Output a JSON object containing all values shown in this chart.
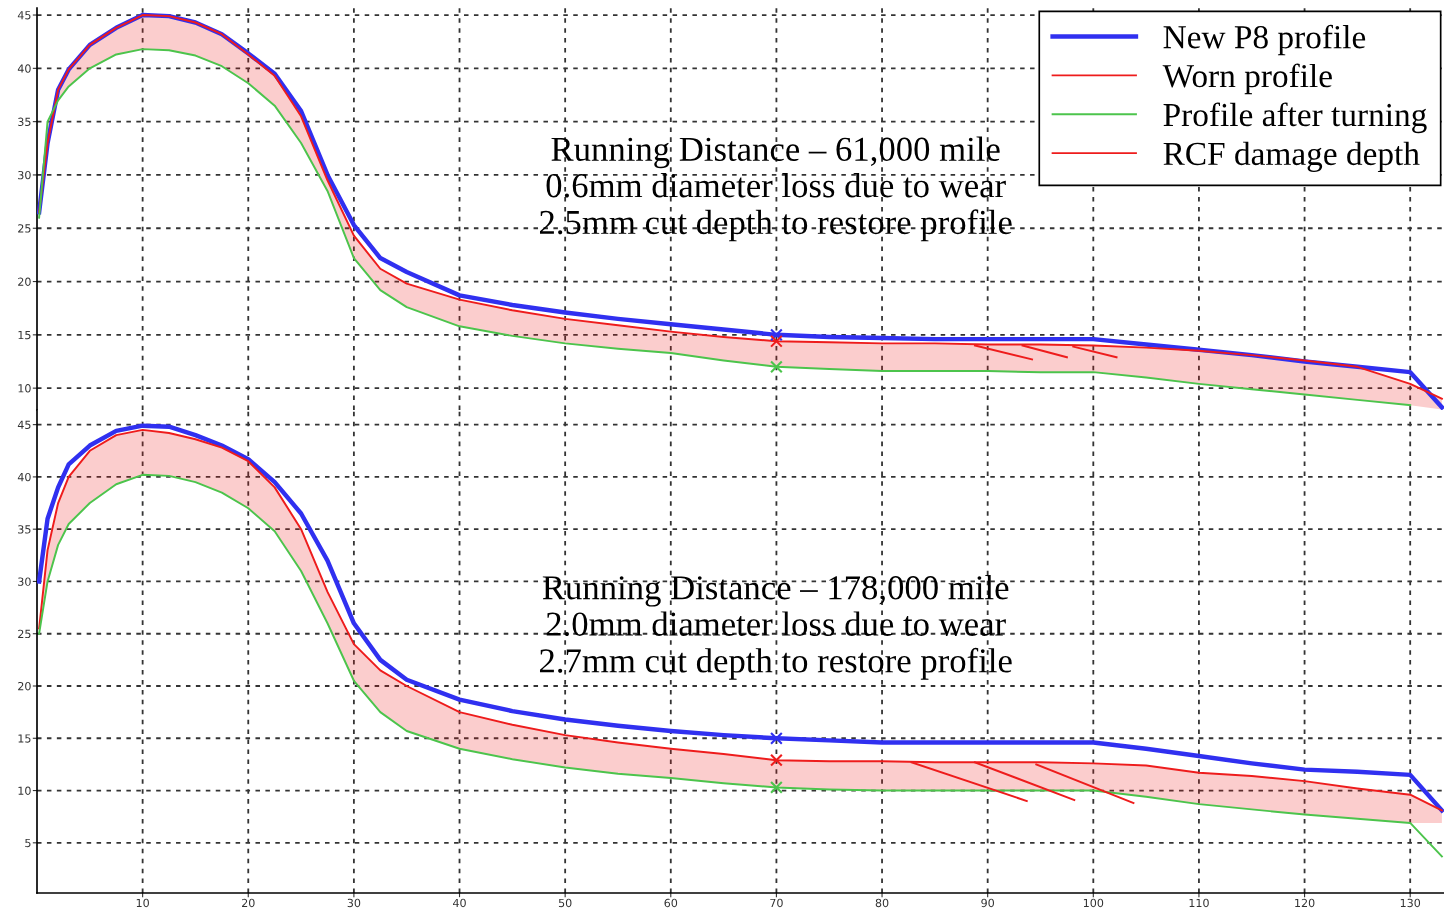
{
  "chart_data": [
    {
      "type": "line",
      "x": [
        0.2,
        1,
        2,
        3,
        5,
        7.5,
        10,
        12.5,
        15,
        17.5,
        20,
        22.5,
        25,
        27.5,
        30,
        32.5,
        35,
        40,
        45,
        50,
        55,
        60,
        65,
        70,
        75,
        80,
        85,
        90,
        95,
        100,
        105,
        110,
        115,
        120,
        125,
        130,
        133
      ],
      "series": [
        {
          "name": "New P8 profile",
          "color": "#3030f0",
          "values": [
            26.5,
            33,
            38,
            39.9,
            42.2,
            43.8,
            45.0,
            44.9,
            44.3,
            43.2,
            41.4,
            39.5,
            36,
            30,
            25.3,
            22.2,
            20.9,
            18.7,
            17.8,
            17.1,
            16.5,
            16.0,
            15.5,
            15.0,
            14.8,
            14.7,
            14.6,
            14.6,
            14.6,
            14.6,
            14.1,
            13.6,
            13.1,
            12.5,
            12.0,
            11.5,
            8.2
          ]
        },
        {
          "name": "Worn profile",
          "color": "#ee1c1c",
          "values": [
            26.5,
            33,
            38,
            39.9,
            42.2,
            43.8,
            45.0,
            44.9,
            44.3,
            43.2,
            41.3,
            39.3,
            35.5,
            29.5,
            24.3,
            21.2,
            19.8,
            18.3,
            17.3,
            16.5,
            15.9,
            15.3,
            14.8,
            14.4,
            14.3,
            14.2,
            14.2,
            14.1,
            14.1,
            14.0,
            13.8,
            13.5,
            13.1,
            12.6,
            12.0,
            10.4,
            9.0
          ],
          "lower": [
            26,
            35,
            37,
            38.3,
            40,
            41.3,
            41.8,
            41.7,
            41.2,
            40.2,
            38.6,
            36.5,
            33,
            28.5,
            22.2,
            19.2,
            17.6,
            15.8,
            14.9,
            14.2,
            13.7,
            13.3,
            12.6,
            12.0,
            11.8,
            11.6,
            11.6,
            11.6,
            11.5,
            11.5,
            11.0,
            10.4,
            9.9,
            9.4,
            8.9,
            8.4,
            8.0
          ],
          "upper": [
            26.5,
            33,
            38,
            39.9,
            42.2,
            43.8,
            45.0,
            44.9,
            44.3,
            43.2,
            41.3,
            39.3,
            35.5,
            29.5,
            24.3,
            21.2,
            19.8,
            18.3,
            17.3,
            16.5,
            15.9,
            15.3,
            14.8,
            14.4,
            14.3,
            14.2,
            14.2,
            14.1,
            14.1,
            14.0,
            13.8,
            13.5,
            13.1,
            12.6,
            12.0,
            10.4,
            9.0
          ]
        },
        {
          "name": "Profile after turning",
          "color": "#4cc44c",
          "values": [
            26,
            35,
            37,
            38.3,
            40,
            41.3,
            41.8,
            41.7,
            41.2,
            40.2,
            38.6,
            36.5,
            33,
            28.5,
            22.2,
            19.2,
            17.6,
            15.8,
            14.9,
            14.2,
            13.7,
            13.3,
            12.6,
            12.0,
            11.8,
            11.6,
            11.6,
            11.6,
            11.5,
            11.5,
            11.0,
            10.4,
            9.9,
            9.4,
            8.9,
            8.4,
            null
          ]
        },
        {
          "name": "RCF damage depth",
          "color": "#ee1c1c",
          "x": [
            88.8,
            94.2
          ],
          "values": [
            14.0,
            12.7
          ]
        },
        {
          "color": "#ee1c1c",
          "x": [
            93.3,
            97.5
          ],
          "values": [
            14.0,
            12.9
          ]
        },
        {
          "color": "#ee1c1c",
          "x": [
            98.1,
            102.2
          ],
          "values": [
            13.9,
            12.9
          ]
        },
        {
          "type": "scatter",
          "marker": "cross",
          "color": "#3030f0",
          "x": [
            70
          ],
          "values": [
            15.0
          ]
        },
        {
          "type": "scatter",
          "marker": "cross",
          "color": "#ee1c1c",
          "x": [
            70
          ],
          "values": [
            14.4
          ]
        },
        {
          "type": "scatter",
          "marker": "cross",
          "color": "#4cc44c",
          "x": [
            70
          ],
          "values": [
            12.0
          ]
        }
      ],
      "xlim": [
        0,
        133.2
      ],
      "xticks": [
        10,
        20,
        30,
        40,
        50,
        60,
        70,
        80,
        90,
        100,
        110,
        120,
        130
      ],
      "ylim": [
        7.95,
        45.66
      ],
      "yticks": [
        10,
        15,
        20,
        25,
        30,
        35,
        40,
        45
      ],
      "tick_labels": "y",
      "grid": true,
      "legend": "top right",
      "annotations": [
        "Running Distance – 61,000 mile\n0.6mm diameter loss due to wear\n2.5mm cut depth to restore profile"
      ]
    },
    {
      "type": "line",
      "x": [
        0.2,
        1,
        2,
        3,
        5,
        7.5,
        10,
        12.5,
        15,
        17.5,
        20,
        22.5,
        25,
        27.5,
        30,
        32.5,
        35,
        40,
        45,
        50,
        55,
        60,
        65,
        70,
        75,
        80,
        85,
        90,
        95,
        100,
        105,
        110,
        115,
        120,
        125,
        130,
        133
      ],
      "series": [
        {
          "color": "#3030f0",
          "values": [
            30,
            36,
            39,
            41.2,
            43,
            44.4,
            44.9,
            44.8,
            44.0,
            43.0,
            41.7,
            39.5,
            36.5,
            32,
            26,
            22.5,
            20.6,
            18.7,
            17.6,
            16.8,
            16.2,
            15.7,
            15.3,
            15.0,
            14.8,
            14.6,
            14.6,
            14.6,
            14.6,
            14.6,
            14.0,
            13.3,
            12.6,
            12.0,
            11.8,
            11.5,
            8.1
          ]
        },
        {
          "color": "#ee1c1c",
          "values": [
            25.5,
            33,
            37.5,
            40,
            42.5,
            44.0,
            44.5,
            44.2,
            43.6,
            42.8,
            41.5,
            39.0,
            35,
            29,
            24,
            21.5,
            20,
            17.5,
            16.3,
            15.3,
            14.6,
            14.0,
            13.5,
            12.9,
            12.8,
            12.8,
            12.7,
            12.7,
            12.7,
            12.6,
            12.4,
            11.7,
            11.4,
            10.9,
            10.2,
            9.6,
            8.1
          ],
          "lower": [
            25,
            30,
            33.5,
            35.5,
            37.5,
            39.3,
            40.2,
            40.1,
            39.5,
            38.5,
            37,
            34.8,
            31,
            26,
            20.5,
            17.5,
            15.7,
            14.0,
            13.0,
            12.2,
            11.6,
            11.2,
            10.7,
            10.3,
            10.1,
            10.0,
            10.0,
            10.0,
            10.0,
            10.0,
            9.4,
            8.7,
            8.2,
            7.7,
            7.3,
            6.9,
            6.9
          ],
          "upper": [
            25.5,
            33,
            37.5,
            40,
            42.5,
            44.0,
            44.5,
            44.2,
            43.6,
            42.8,
            41.5,
            39.0,
            35,
            29,
            24,
            21.5,
            20,
            17.5,
            16.3,
            15.3,
            14.6,
            14.0,
            13.5,
            12.9,
            12.8,
            12.8,
            12.7,
            12.7,
            12.7,
            12.6,
            12.4,
            11.7,
            11.4,
            10.9,
            10.2,
            9.6,
            8.1
          ]
        },
        {
          "color": "#4cc44c",
          "values": [
            25,
            30,
            33.5,
            35.5,
            37.5,
            39.3,
            40.2,
            40.1,
            39.5,
            38.5,
            37,
            34.8,
            31,
            26,
            20.5,
            17.5,
            15.7,
            14.0,
            13.0,
            12.2,
            11.6,
            11.2,
            10.7,
            10.3,
            10.1,
            10.0,
            10.0,
            10.0,
            10.0,
            10.0,
            9.4,
            8.7,
            8.2,
            7.7,
            7.3,
            6.9,
            3.7
          ]
        },
        {
          "color": "#ee1c1c",
          "x": [
            82.8,
            93.7
          ],
          "values": [
            12.7,
            9.0
          ]
        },
        {
          "color": "#ee1c1c",
          "x": [
            88.8,
            98.2
          ],
          "values": [
            12.7,
            9.1
          ]
        },
        {
          "color": "#ee1c1c",
          "x": [
            94.6,
            103.8
          ],
          "values": [
            12.5,
            8.8
          ]
        },
        {
          "type": "scatter",
          "marker": "cross",
          "color": "#3030f0",
          "x": [
            70
          ],
          "values": [
            15.0
          ]
        },
        {
          "type": "scatter",
          "marker": "cross",
          "color": "#ee1c1c",
          "x": [
            70
          ],
          "values": [
            12.9
          ]
        },
        {
          "type": "scatter",
          "marker": "cross",
          "color": "#4cc44c",
          "x": [
            70
          ],
          "values": [
            10.3
          ]
        }
      ],
      "xlim": [
        0,
        133.2
      ],
      "xticks": [
        10,
        20,
        30,
        40,
        50,
        60,
        70,
        80,
        90,
        100,
        110,
        120,
        130
      ],
      "ylim": [
        0.2,
        46.4
      ],
      "yticks": [
        5,
        10,
        15,
        20,
        25,
        30,
        35,
        40,
        45
      ],
      "grid": true,
      "annotations": [
        "Running Distance – 178,000 mile\n2.0mm diameter loss due to wear\n2.7mm cut depth to restore profile"
      ]
    }
  ]
}
